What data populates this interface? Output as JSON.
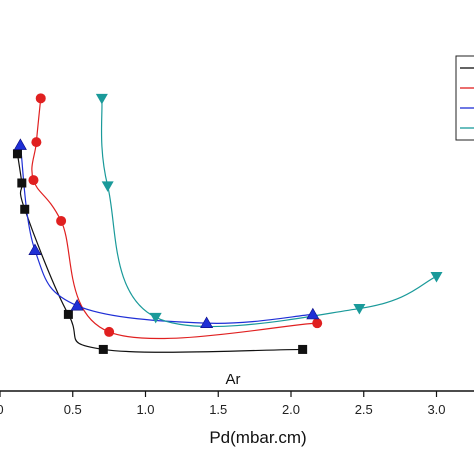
{
  "chart_data": {
    "type": "scatter",
    "xlabel": "Pd(mbar.cm)",
    "ylabel": "",
    "xlim": [
      0,
      3.25
    ],
    "ylim": [
      0,
      11
    ],
    "x_ticks": [
      0,
      0.5,
      1.0,
      1.5,
      2.0,
      2.5,
      3.0
    ],
    "x_tick_labels": [
      "0",
      "0.5",
      "1.0",
      "1.5",
      "2.0",
      "2.5",
      "3.0"
    ],
    "annotation": "Ar",
    "legend_position": "top-right",
    "series": [
      {
        "color": "#111111",
        "marker": "square",
        "points": [
          [
            0.12,
            8.5
          ],
          [
            0.15,
            7.5
          ],
          [
            0.17,
            6.6
          ],
          [
            0.47,
            3.0
          ],
          [
            0.71,
            1.8
          ],
          [
            2.08,
            1.8
          ]
        ]
      },
      {
        "color": "#e02020",
        "marker": "circle",
        "points": [
          [
            0.28,
            10.4
          ],
          [
            0.25,
            8.9
          ],
          [
            0.23,
            7.6
          ],
          [
            0.42,
            6.2
          ],
          [
            0.75,
            2.4
          ],
          [
            2.18,
            2.7
          ]
        ]
      },
      {
        "color": "#1f2fd6",
        "marker": "triangle-up",
        "points": [
          [
            0.14,
            8.8
          ],
          [
            0.24,
            5.2
          ],
          [
            0.53,
            3.3
          ],
          [
            1.42,
            2.7
          ],
          [
            2.15,
            3.0
          ]
        ]
      },
      {
        "color": "#1a9a9a",
        "marker": "triangle-down",
        "points": [
          [
            0.7,
            10.4
          ],
          [
            0.74,
            7.4
          ],
          [
            1.07,
            2.9
          ],
          [
            2.47,
            3.2
          ],
          [
            3.0,
            4.3
          ]
        ]
      }
    ]
  }
}
